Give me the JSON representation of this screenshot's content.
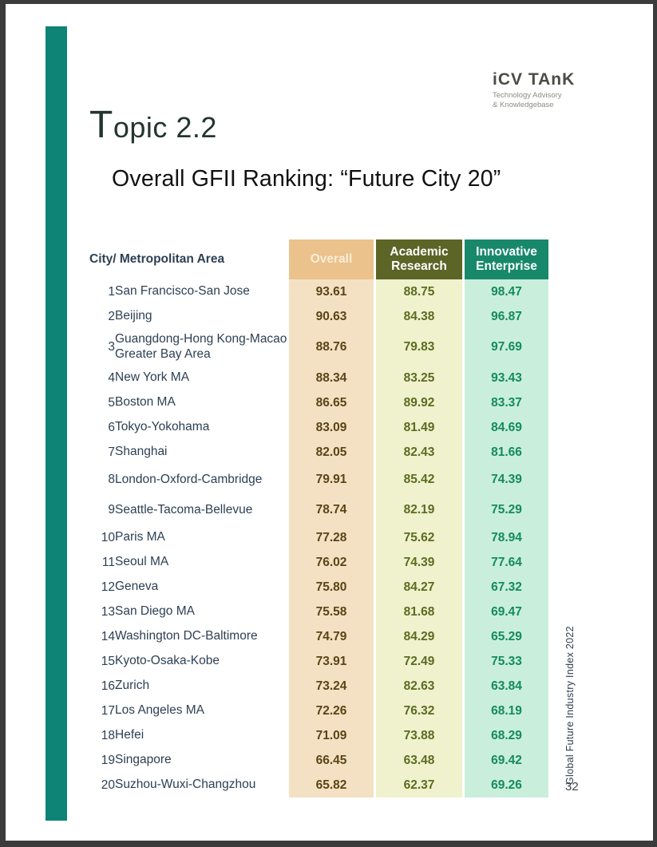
{
  "page": {
    "topic_initial": "T",
    "topic_rest": "opic 2.2",
    "subtitle": "Overall GFII Ranking:   “Future City 20”",
    "side_label": "Global Future Industry Index 2022",
    "page_number": "32"
  },
  "logo": {
    "name": "iCV TAnK",
    "tagline_line1": "Technology Advisory",
    "tagline_line2": "& Knowledgebase"
  },
  "table": {
    "city_header": "City/ Metropolitan Area",
    "columns": [
      {
        "label": "Overall"
      },
      {
        "label": "Academic Research"
      },
      {
        "label": "Innovative Enterprise"
      }
    ],
    "rows": [
      {
        "rank": "1",
        "city": "San Francisco-San Jose",
        "overall": "93.61",
        "academic": "88.75",
        "innovative": "98.47"
      },
      {
        "rank": "2",
        "city": "Beijing",
        "overall": "90.63",
        "academic": "84.38",
        "innovative": "96.87"
      },
      {
        "rank": "3",
        "city": "Guangdong-Hong Kong-Macao Greater Bay Area",
        "overall": "88.76",
        "academic": "79.83",
        "innovative": "97.69"
      },
      {
        "rank": "4",
        "city": "New York MA",
        "overall": "88.34",
        "academic": "83.25",
        "innovative": "93.43"
      },
      {
        "rank": "5",
        "city": "Boston MA",
        "overall": "86.65",
        "academic": "89.92",
        "innovative": "83.37"
      },
      {
        "rank": "6",
        "city": "Tokyo-Yokohama",
        "overall": "83.09",
        "academic": "81.49",
        "innovative": "84.69"
      },
      {
        "rank": "7",
        "city": "Shanghai",
        "overall": "82.05",
        "academic": "82.43",
        "innovative": "81.66"
      },
      {
        "rank": "8",
        "city": "London-Oxford-Cambridge",
        "overall": "79.91",
        "academic": "85.42",
        "innovative": "74.39"
      },
      {
        "rank": "9",
        "city": "Seattle-Tacoma-Bellevue",
        "overall": "78.74",
        "academic": "82.19",
        "innovative": "75.29"
      },
      {
        "rank": "10",
        "city": "Paris MA",
        "overall": "77.28",
        "academic": "75.62",
        "innovative": "78.94"
      },
      {
        "rank": "11",
        "city": "Seoul MA",
        "overall": "76.02",
        "academic": "74.39",
        "innovative": "77.64"
      },
      {
        "rank": "12",
        "city": "Geneva",
        "overall": "75.80",
        "academic": "84.27",
        "innovative": "67.32"
      },
      {
        "rank": "13",
        "city": "San Diego MA",
        "overall": "75.58",
        "academic": "81.68",
        "innovative": "69.47"
      },
      {
        "rank": "14",
        "city": "Washington DC-Baltimore",
        "overall": "74.79",
        "academic": "84.29",
        "innovative": "65.29"
      },
      {
        "rank": "15",
        "city": "Kyoto-Osaka-Kobe",
        "overall": "73.91",
        "academic": "72.49",
        "innovative": "75.33"
      },
      {
        "rank": "16",
        "city": "Zurich",
        "overall": "73.24",
        "academic": "82.63",
        "innovative": "63.84"
      },
      {
        "rank": "17",
        "city": "Los Angeles MA",
        "overall": "72.26",
        "academic": "76.32",
        "innovative": "68.19"
      },
      {
        "rank": "18",
        "city": "Hefei",
        "overall": "71.09",
        "academic": "73.88",
        "innovative": "68.29"
      },
      {
        "rank": "19",
        "city": "Singapore",
        "overall": "66.45",
        "academic": "63.48",
        "innovative": "69.42"
      },
      {
        "rank": "20",
        "city": "Suzhou-Wuxi-Changzhou",
        "overall": "65.82",
        "academic": "62.37",
        "innovative": "69.26"
      }
    ]
  },
  "colors": {
    "frame": "#3b3b3b",
    "accent_bar": "#0e8476",
    "header_overall_bg": "#ebc28b",
    "header_overall_text": "#f8eed8",
    "header_academic_bg": "#5c6426",
    "header_innovative_bg": "#17896a",
    "body_overall_bg": "#f4e1c3",
    "body_academic_bg": "#eff2cd",
    "body_innovative_bg": "#c9efdc",
    "value_overall_text": "#5a4416",
    "value_academic_text": "#5b6b21",
    "value_innovative_text": "#158a5e",
    "city_text": "#2e4053"
  }
}
